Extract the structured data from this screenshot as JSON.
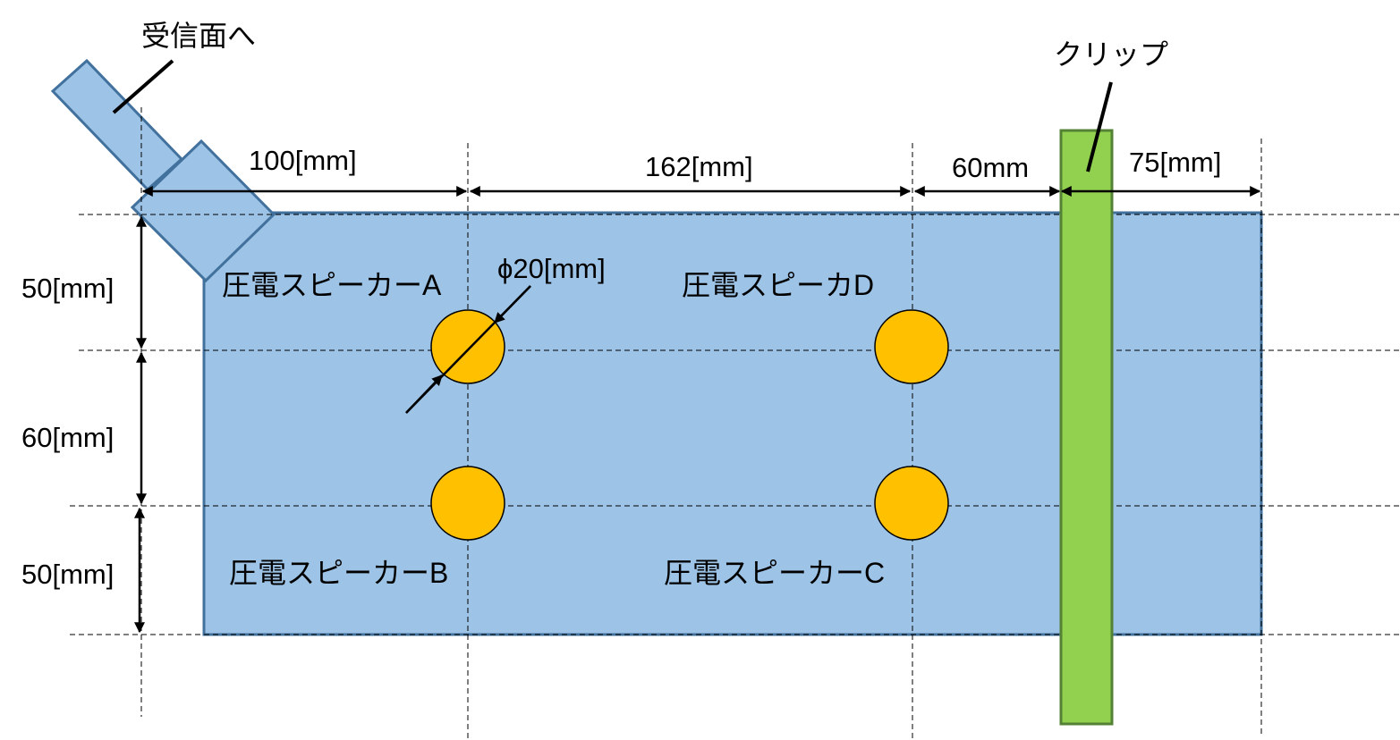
{
  "labels": {
    "receiving_surface": "受信面へ",
    "clip": "クリップ",
    "speaker_a": "圧電スピーカーA",
    "speaker_b": "圧電スピーカーB",
    "speaker_c": "圧電スピーカーC",
    "speaker_d": "圧電スピーカD",
    "diameter": "ϕ20[mm]"
  },
  "dimensions": {
    "h1": "100[mm]",
    "h2": "162[mm]",
    "h3": "60mm",
    "h4": "75[mm]",
    "v1": "50[mm]",
    "v2": "60[mm]",
    "v3": "50[mm]"
  },
  "colors": {
    "plate_fill": "#9DC3E6",
    "plate_stroke": "#41719C",
    "speaker_fill": "#FFC000",
    "clip_fill": "#92D050",
    "clip_stroke": "#548235"
  }
}
